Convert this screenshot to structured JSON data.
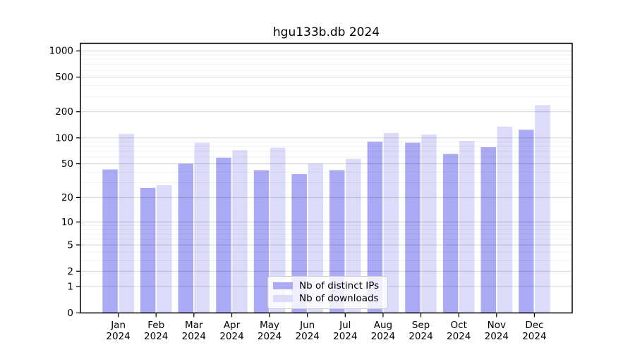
{
  "chart_data": {
    "type": "bar",
    "title": "hgu133b.db 2024",
    "categories": [
      "Jan 2024",
      "Feb 2024",
      "Mar 2024",
      "Apr 2024",
      "May 2024",
      "Jun 2024",
      "Jul 2024",
      "Aug 2024",
      "Sep 2024",
      "Oct 2024",
      "Nov 2024",
      "Dec 2024"
    ],
    "series": [
      {
        "name": "Nb of distinct IPs",
        "color": "#aaaaf5",
        "values": [
          43,
          26,
          50,
          59,
          42,
          38,
          42,
          90,
          88,
          65,
          78,
          124
        ]
      },
      {
        "name": "Nb of downloads",
        "color": "#dcdcfa",
        "values": [
          111,
          28,
          88,
          72,
          77,
          50,
          57,
          114,
          109,
          92,
          135,
          239
        ]
      }
    ],
    "y_scale": "log10(1+y)",
    "y_ticks": [
      0,
      1,
      2,
      5,
      10,
      20,
      50,
      100,
      200,
      500,
      1000
    ],
    "y_minor_ticks": [
      3,
      4,
      6,
      7,
      8,
      9,
      30,
      40,
      60,
      70,
      80,
      90,
      300,
      400,
      600,
      700,
      800,
      900
    ],
    "ylim": [
      0,
      1220
    ],
    "grid": true,
    "xlabel": "",
    "ylabel": "",
    "legend_position": "bottom-center"
  },
  "colors": {
    "axis": "#000000",
    "major_grid": "rgba(0,0,0,0.14)",
    "minor_grid": "rgba(0,0,0,0.055)",
    "legend_border": "#cccccc"
  }
}
